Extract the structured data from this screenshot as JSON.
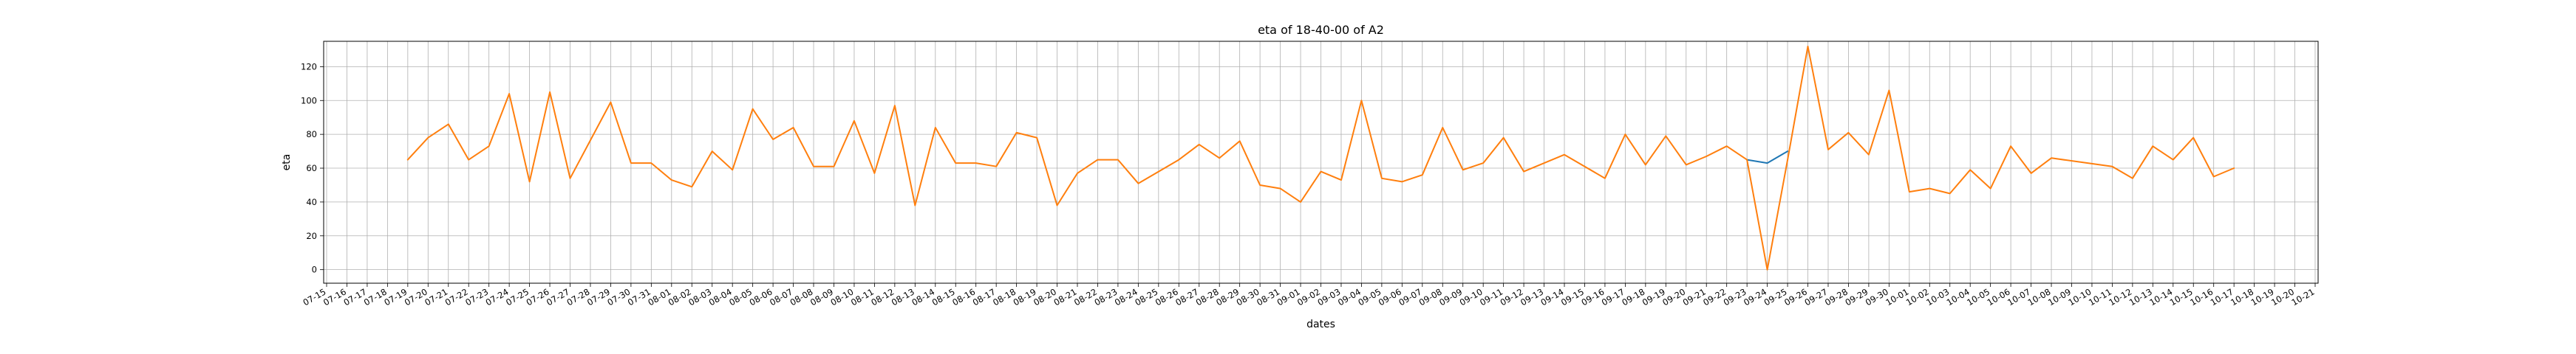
{
  "chart_data": {
    "type": "line",
    "title": "eta of 18-40-00 of A2",
    "xlabel": "dates",
    "ylabel": "eta",
    "ylim": [
      -8,
      135
    ],
    "yticks": [
      0,
      20,
      40,
      60,
      80,
      100,
      120
    ],
    "grid": true,
    "x_tick_labels": [
      "07-15",
      "07-16",
      "07-17",
      "07-18",
      "07-19",
      "07-20",
      "07-21",
      "07-22",
      "07-23",
      "07-24",
      "07-25",
      "07-26",
      "07-27",
      "07-28",
      "07-29",
      "07-30",
      "07-31",
      "08-01",
      "08-02",
      "08-03",
      "08-04",
      "08-05",
      "08-06",
      "08-07",
      "08-08",
      "08-09",
      "08-10",
      "08-11",
      "08-12",
      "08-13",
      "08-14",
      "08-15",
      "08-16",
      "08-17",
      "08-18",
      "08-19",
      "08-20",
      "08-21",
      "08-22",
      "08-23",
      "08-24",
      "08-25",
      "08-26",
      "08-27",
      "08-28",
      "08-29",
      "08-30",
      "08-31",
      "09-01",
      "09-02",
      "09-03",
      "09-04",
      "09-05",
      "09-06",
      "09-07",
      "09-08",
      "09-09",
      "09-10",
      "09-11",
      "09-12",
      "09-13",
      "09-14",
      "09-15",
      "09-16",
      "09-17",
      "09-18",
      "09-19",
      "09-20",
      "09-21",
      "09-22",
      "09-23",
      "09-24",
      "09-25",
      "09-26",
      "09-27",
      "09-28",
      "09-29",
      "09-30",
      "10-01",
      "10-02",
      "10-03",
      "10-04",
      "10-05",
      "10-06",
      "10-07",
      "10-08",
      "10-09",
      "10-10",
      "10-11",
      "10-12",
      "10-13",
      "10-14",
      "10-15",
      "10-16",
      "10-17",
      "10-18",
      "10-19",
      "10-20",
      "10-21"
    ],
    "series": [
      {
        "color": "#1f77b4",
        "points": [
          [
            "09-23",
            65
          ],
          [
            "09-24",
            63
          ],
          [
            "09-25",
            70
          ]
        ]
      },
      {
        "color": "#ff7f0e",
        "points": [
          [
            "07-19",
            65
          ],
          [
            "07-20",
            78
          ],
          [
            "07-21",
            86
          ],
          [
            "07-22",
            65
          ],
          [
            "07-23",
            73
          ],
          [
            "07-24",
            104
          ],
          [
            "07-25",
            52
          ],
          [
            "07-26",
            105
          ],
          [
            "07-27",
            54
          ],
          [
            "07-29",
            99
          ],
          [
            "07-30",
            63
          ],
          [
            "07-31",
            63
          ],
          [
            "08-01",
            53
          ],
          [
            "08-02",
            49
          ],
          [
            "08-03",
            70
          ],
          [
            "08-04",
            59
          ],
          [
            "08-05",
            95
          ],
          [
            "08-06",
            77
          ],
          [
            "08-07",
            84
          ],
          [
            "08-08",
            61
          ],
          [
            "08-09",
            61
          ],
          [
            "08-10",
            88
          ],
          [
            "08-11",
            57
          ],
          [
            "08-12",
            97
          ],
          [
            "08-13",
            38
          ],
          [
            "08-14",
            84
          ],
          [
            "08-15",
            63
          ],
          [
            "08-16",
            63
          ],
          [
            "08-17",
            61
          ],
          [
            "08-18",
            81
          ],
          [
            "08-19",
            78
          ],
          [
            "08-20",
            38
          ],
          [
            "08-21",
            57
          ],
          [
            "08-22",
            65
          ],
          [
            "08-23",
            65
          ],
          [
            "08-24",
            51
          ],
          [
            "08-26",
            65
          ],
          [
            "08-27",
            74
          ],
          [
            "08-28",
            66
          ],
          [
            "08-29",
            76
          ],
          [
            "08-30",
            50
          ],
          [
            "08-31",
            48
          ],
          [
            "09-01",
            40
          ],
          [
            "09-02",
            58
          ],
          [
            "09-03",
            53
          ],
          [
            "09-04",
            100
          ],
          [
            "09-05",
            54
          ],
          [
            "09-06",
            52
          ],
          [
            "09-07",
            56
          ],
          [
            "09-08",
            84
          ],
          [
            "09-09",
            59
          ],
          [
            "09-10",
            63
          ],
          [
            "09-11",
            78
          ],
          [
            "09-12",
            58
          ],
          [
            "09-14",
            68
          ],
          [
            "09-16",
            54
          ],
          [
            "09-17",
            80
          ],
          [
            "09-18",
            62
          ],
          [
            "09-19",
            79
          ],
          [
            "09-20",
            62
          ],
          [
            "09-21",
            67
          ],
          [
            "09-22",
            73
          ],
          [
            "09-23",
            65
          ],
          [
            "09-24",
            0
          ],
          [
            "09-25",
            65
          ],
          [
            "09-26",
            132
          ],
          [
            "09-27",
            71
          ],
          [
            "09-28",
            81
          ],
          [
            "09-29",
            68
          ],
          [
            "09-30",
            106
          ],
          [
            "10-01",
            46
          ],
          [
            "10-02",
            48
          ],
          [
            "10-03",
            45
          ],
          [
            "10-04",
            59
          ],
          [
            "10-05",
            48
          ],
          [
            "10-06",
            73
          ],
          [
            "10-07",
            57
          ],
          [
            "10-08",
            66
          ],
          [
            "10-11",
            61
          ],
          [
            "10-12",
            54
          ],
          [
            "10-13",
            73
          ],
          [
            "10-14",
            65
          ],
          [
            "10-15",
            78
          ],
          [
            "10-16",
            55
          ],
          [
            "10-17",
            60
          ]
        ]
      }
    ]
  }
}
